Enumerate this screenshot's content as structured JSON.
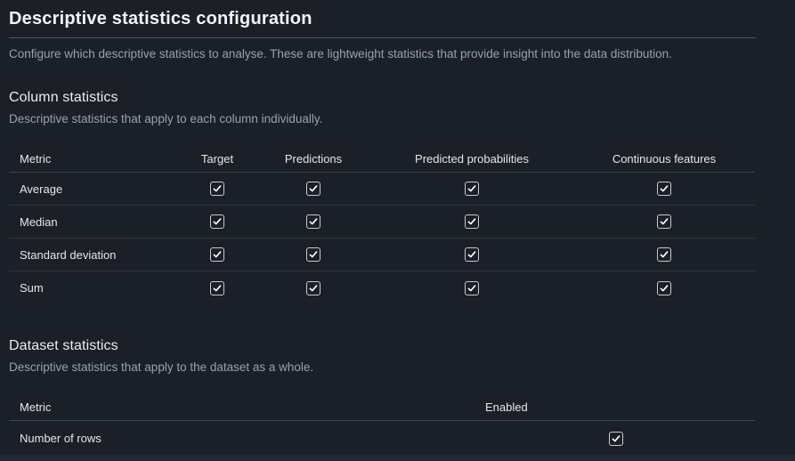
{
  "page": {
    "title": "Descriptive statistics configuration",
    "subtitle": "Configure which descriptive statistics to analyse. These are lightweight statistics that provide insight into the data distribution."
  },
  "column_statistics": {
    "heading": "Column statistics",
    "description": "Descriptive statistics that apply to each column individually.",
    "table": {
      "headers": [
        "Metric",
        "Target",
        "Predictions",
        "Predicted probabilities",
        "Continuous features"
      ],
      "rows": [
        {
          "metric": "Average",
          "checks": [
            true,
            true,
            true,
            true
          ]
        },
        {
          "metric": "Median",
          "checks": [
            true,
            true,
            true,
            true
          ]
        },
        {
          "metric": "Standard deviation",
          "checks": [
            true,
            true,
            true,
            true
          ]
        },
        {
          "metric": "Sum",
          "checks": [
            true,
            true,
            true,
            true
          ]
        }
      ]
    }
  },
  "dataset_statistics": {
    "heading": "Dataset statistics",
    "description": "Descriptive statistics that apply to the dataset as a whole.",
    "table": {
      "headers": [
        "Metric",
        "Enabled"
      ],
      "rows": [
        {
          "metric": "Number of rows",
          "checks": [
            true
          ]
        }
      ]
    }
  },
  "colors": {
    "background": "#1b1f27",
    "text_primary": "#f2f4f6",
    "text_secondary": "#99a1ac",
    "divider": "#4e5663",
    "header_divider": "#3f4551",
    "row_divider": "#2f3540",
    "checkbox_border": "#c6ccd4",
    "checkbox_check": "#ffffff",
    "footer_strip": "#232833"
  }
}
